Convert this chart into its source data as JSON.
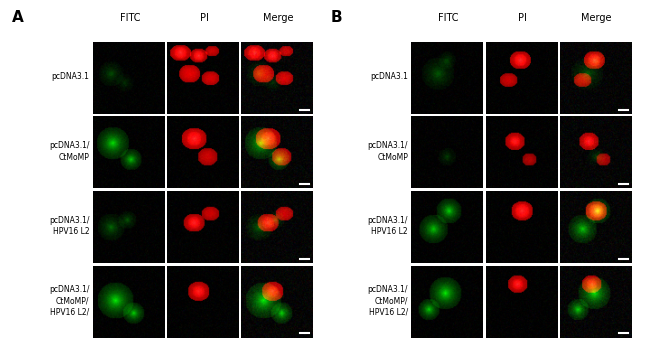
{
  "panel_A_label": "A",
  "panel_B_label": "B",
  "col_headers": [
    "FITC",
    "PI",
    "Merge"
  ],
  "row_labels": [
    "pcDNA3.1",
    "pcDNA3.1/\nCtMoMP",
    "pcDNA3.1/\nHPV16 L2",
    "pcDNA3.1/\nCtMoMP/\nHPV16 L2/"
  ],
  "bg_color": "#ffffff",
  "panel_bg": "#000000",
  "text_color": "#000000",
  "header_fontsize": 7,
  "label_fontsize": 5.5,
  "panel_letter_fontsize": 11,
  "n_rows": 4,
  "n_cols": 3,
  "scale_bar_color": "#ffffff"
}
